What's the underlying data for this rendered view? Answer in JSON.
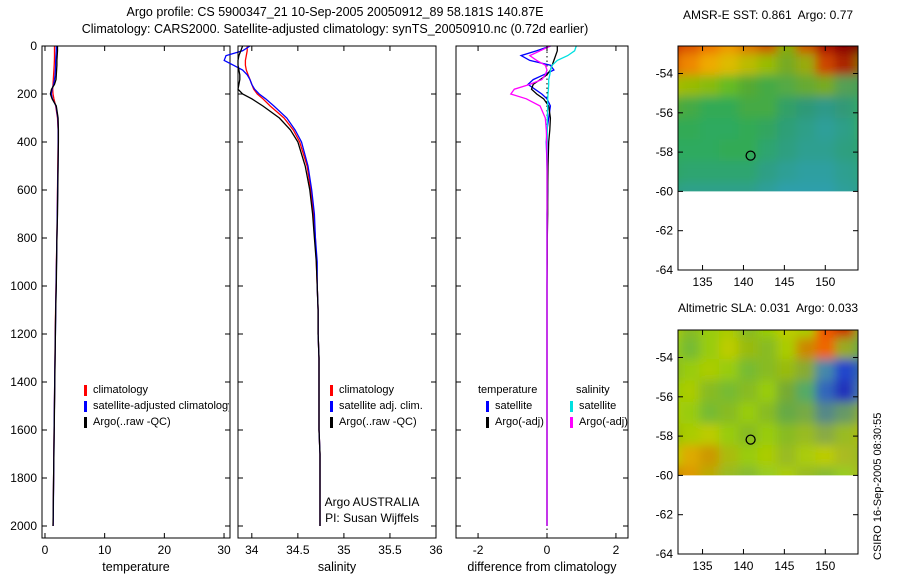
{
  "header": {
    "title_line1": "Argo profile: CS 5900347_21 10-Sep-2005 20050912_89 58.181S 140.87E",
    "title_line2": "Climatology: CARS2000. Satellite-adjusted climatology: synTS_20050910.nc (0.72d earlier)"
  },
  "watermark": "CSIRO 16-Sep-2005 08:30:55",
  "annotations": {
    "line1": "Argo AUSTRALIA",
    "line2": "PI: Susan Wijffels"
  },
  "legends": {
    "temperature": {
      "items": [
        {
          "label": "climatology",
          "color": "#ff0000"
        },
        {
          "label": "satellite-adjusted climatology",
          "color": "#0000ff"
        },
        {
          "label": "Argo(..raw -QC)",
          "color": "#000000"
        }
      ]
    },
    "salinity": {
      "items": [
        {
          "label": "climatology",
          "color": "#ff0000"
        },
        {
          "label": "satellite adj. clim.",
          "color": "#0000ff"
        },
        {
          "label": "Argo(..raw -QC)",
          "color": "#000000"
        }
      ]
    },
    "difference": {
      "columns": [
        {
          "header": "temperature",
          "items": [
            {
              "label": "satellite",
              "color": "#0000ff"
            },
            {
              "label": "Argo(-adj)",
              "color": "#000000"
            }
          ]
        },
        {
          "header": "salinity",
          "items": [
            {
              "label": "satellite",
              "color": "#00e0e0"
            },
            {
              "label": "Argo(-adj)",
              "color": "#ff00ff"
            }
          ]
        }
      ]
    }
  },
  "chart_data": [
    {
      "id": "temperature-profile",
      "type": "line",
      "xlabel": "temperature",
      "xlim": [
        -0.5,
        31
      ],
      "ylim": [
        0,
        2050
      ],
      "xticks": [
        0,
        10,
        20,
        30
      ],
      "yticks": [
        0,
        200,
        400,
        600,
        800,
        1000,
        1200,
        1400,
        1600,
        1800,
        2000
      ],
      "depths": [
        0,
        20,
        40,
        60,
        80,
        100,
        120,
        140,
        160,
        180,
        200,
        220,
        250,
        300,
        350,
        400,
        500,
        600,
        700,
        800,
        900,
        1000,
        1100,
        1200,
        1300,
        1400,
        1500,
        1600,
        1700,
        1800,
        1900,
        1950,
        2000
      ],
      "series": [
        {
          "name": "climatology",
          "color": "#ff0000",
          "x": [
            1.6,
            1.6,
            1.6,
            1.58,
            1.55,
            1.5,
            1.45,
            1.4,
            1.35,
            1.3,
            1.35,
            1.5,
            1.8,
            2.1,
            2.2,
            2.2,
            2.15,
            2.1,
            2.05,
            2.0,
            1.92,
            1.85,
            1.78,
            1.72,
            1.67,
            1.62,
            1.57,
            1.52,
            1.48,
            1.44,
            1.4,
            1.38,
            1.36
          ]
        },
        {
          "name": "satellite-adjusted climatology",
          "color": "#0000ff",
          "x": [
            1.9,
            1.9,
            1.85,
            1.8,
            1.78,
            1.75,
            1.7,
            1.6,
            1.45,
            1.2,
            1.05,
            1.25,
            1.85,
            2.15,
            2.22,
            2.22,
            2.18,
            2.12,
            2.07,
            2.0,
            1.93,
            1.87,
            1.8,
            1.74,
            1.68,
            1.63,
            1.58,
            1.53,
            1.49,
            1.45,
            1.41,
            1.39,
            1.36
          ]
        },
        {
          "name": "Argo(..raw -QC)",
          "color": "#000000",
          "x": [
            2.1,
            2.1,
            2.05,
            2.0,
            2.0,
            1.95,
            1.9,
            1.85,
            1.6,
            1.1,
            0.9,
            1.2,
            1.9,
            2.2,
            2.25,
            2.25,
            2.2,
            2.15,
            2.1,
            2.0,
            1.95,
            1.9,
            1.8,
            1.75,
            1.7,
            1.65,
            1.6,
            1.55,
            1.5,
            1.45,
            1.4,
            1.38,
            1.35
          ]
        }
      ]
    },
    {
      "id": "salinity-profile",
      "type": "line",
      "xlabel": "salinity",
      "xlim": [
        33.85,
        36
      ],
      "ylim": [
        0,
        2050
      ],
      "xticks": [
        34,
        34.5,
        35,
        35.5,
        36
      ],
      "yticks": [
        0,
        200,
        400,
        600,
        800,
        1000,
        1200,
        1400,
        1600,
        1800,
        2000
      ],
      "depths": [
        0,
        20,
        40,
        60,
        80,
        100,
        120,
        140,
        160,
        180,
        200,
        220,
        250,
        300,
        350,
        400,
        500,
        600,
        700,
        800,
        900,
        1000,
        1100,
        1200,
        1300,
        1400,
        1500,
        1600,
        1700,
        1800,
        1900,
        1950,
        2000
      ],
      "series": [
        {
          "name": "climatology",
          "color": "#ff0000",
          "x": [
            33.95,
            33.95,
            33.94,
            33.93,
            33.93,
            33.94,
            33.96,
            33.98,
            34.0,
            34.02,
            34.06,
            34.12,
            34.2,
            34.35,
            34.45,
            34.52,
            34.6,
            34.64,
            34.67,
            34.69,
            34.7,
            34.71,
            34.72,
            34.72,
            34.73,
            34.73,
            34.73,
            34.73,
            34.74,
            34.74,
            34.74,
            34.74,
            34.74
          ]
        },
        {
          "name": "satellite adj. clim.",
          "color": "#0000ff",
          "x": [
            33.98,
            33.9,
            33.72,
            33.7,
            33.8,
            33.9,
            33.95,
            33.98,
            34.0,
            34.03,
            34.08,
            34.15,
            34.24,
            34.38,
            34.47,
            34.54,
            34.61,
            34.65,
            34.68,
            34.69,
            34.71,
            34.71,
            34.72,
            34.72,
            34.73,
            34.73,
            34.73,
            34.73,
            34.74,
            34.74,
            34.74,
            34.74,
            34.74
          ]
        },
        {
          "name": "Argo(..raw -QC)",
          "color": "#000000",
          "x": [
            33.9,
            33.88,
            33.86,
            33.85,
            33.85,
            33.86,
            33.87,
            33.87,
            33.86,
            33.85,
            33.9,
            34.0,
            34.12,
            34.3,
            34.42,
            34.5,
            34.58,
            34.63,
            34.66,
            34.68,
            34.7,
            34.71,
            34.72,
            34.72,
            34.73,
            34.73,
            34.73,
            34.73,
            34.74,
            34.74,
            34.74,
            34.74,
            34.74
          ]
        }
      ]
    },
    {
      "id": "difference-profile",
      "type": "line",
      "xlabel": "difference from climatology",
      "xlim": [
        -2.64,
        2.35
      ],
      "ylim": [
        0,
        2050
      ],
      "xticks": [
        -2,
        0,
        2
      ],
      "yticks": [
        0,
        200,
        400,
        600,
        800,
        1000,
        1200,
        1400,
        1600,
        1800,
        2000
      ],
      "zero_line": true,
      "depths": [
        0,
        20,
        40,
        60,
        80,
        100,
        120,
        140,
        160,
        180,
        200,
        220,
        250,
        300,
        350,
        400,
        500,
        600,
        700,
        800,
        900,
        1000,
        1100,
        1200,
        1300,
        1400,
        1500,
        1600,
        1700,
        1800,
        1900,
        1950,
        2000
      ],
      "series": [
        {
          "name": "temperature satellite",
          "color": "#0000ff",
          "x": [
            0.1,
            -0.3,
            -0.75,
            -0.5,
            0.1,
            0.2,
            -0.1,
            -0.4,
            -0.55,
            -0.35,
            -0.15,
            0.0,
            0.1,
            0.05,
            0.0,
            -0.02,
            0.0,
            0.02,
            0.0,
            0.0,
            0.0,
            0.0,
            0.0,
            0.0,
            0.0,
            0.0,
            0.0,
            0.0,
            0.0,
            0.0,
            0.0,
            0.0,
            0.0
          ]
        },
        {
          "name": "temperature Argo(-adj)",
          "color": "#000000",
          "x": [
            0.3,
            0.3,
            0.25,
            0.2,
            0.15,
            0.1,
            0.0,
            -0.2,
            -0.4,
            -0.45,
            -0.3,
            -0.1,
            0.05,
            0.1,
            0.08,
            0.05,
            0.03,
            0.02,
            0.02,
            0.01,
            0.01,
            0.0,
            0.0,
            0.0,
            0.0,
            0.0,
            0.0,
            0.0,
            0.0,
            0.0,
            0.0,
            0.0,
            0.0
          ]
        },
        {
          "name": "salinity satellite",
          "color": "#00e0e0",
          "x": [
            0.85,
            0.8,
            0.6,
            0.3,
            0.15,
            0.1,
            0.08,
            0.05,
            0.05,
            0.04,
            0.03,
            0.02,
            0.02,
            0.01,
            0.01,
            0.01,
            0.0,
            0.0,
            0.0,
            0.0,
            0.0,
            0.0,
            0.0,
            0.0,
            0.0,
            0.0,
            0.0,
            0.0,
            0.0,
            0.0,
            0.0,
            0.0,
            0.0
          ]
        },
        {
          "name": "salinity Argo(-adj)",
          "color": "#ff00ff",
          "x": [
            0.1,
            -0.2,
            -0.5,
            -0.3,
            -0.05,
            0.0,
            -0.05,
            -0.15,
            -0.5,
            -0.95,
            -1.05,
            -0.6,
            -0.2,
            -0.05,
            -0.02,
            -0.01,
            0.0,
            0.0,
            0.0,
            0.0,
            0.0,
            0.0,
            0.0,
            0.0,
            0.0,
            0.0,
            0.0,
            0.0,
            0.0,
            0.0,
            0.0,
            0.0,
            0.0
          ]
        }
      ]
    },
    {
      "id": "sst-map",
      "type": "heatmap",
      "title": "AMSR-E SST: 0.861  Argo: 0.77",
      "xlim": [
        132,
        154
      ],
      "ylim": [
        -52.6,
        -64
      ],
      "xticks": [
        135,
        140,
        145,
        150
      ],
      "yticks": [
        -54,
        -56,
        -58,
        -60,
        -62,
        -64
      ],
      "data_lat_limit": -60,
      "marker": {
        "lon": 140.87,
        "lat": -58.18
      },
      "grid": [
        [
          "#cc3300",
          "#dd5500",
          "#ee7700",
          "#ee9900",
          "#dd7700",
          "#cc5500",
          "#88aa00",
          "#cc5500",
          "#aa1100",
          "#880000",
          "#770000"
        ],
        [
          "#dd6600",
          "#ee8800",
          "#eeaa00",
          "#ddbb00",
          "#bbbb00",
          "#99bb00",
          "#77aa22",
          "#99aa11",
          "#cc4400",
          "#aa2200",
          "#886600"
        ],
        [
          "#aabb00",
          "#99bb00",
          "#88bb11",
          "#66bb22",
          "#55aa33",
          "#44aa44",
          "#55aa44",
          "#66aa33",
          "#77aa22",
          "#55a055",
          "#44a055"
        ],
        [
          "#55aa33",
          "#44aa44",
          "#33aa55",
          "#33aa55",
          "#44aa44",
          "#44aa44",
          "#33a066",
          "#2f9977",
          "#2f9988",
          "#339977",
          "#33aa66"
        ],
        [
          "#33aa55",
          "#33aa55",
          "#2faa5f",
          "#2faa5f",
          "#33aa55",
          "#33a55f",
          "#2f9f77",
          "#2f9f88",
          "#2f9f99",
          "#2f9f88",
          "#33aa66"
        ],
        [
          "#2faa5f",
          "#2faa5f",
          "#2faa5f",
          "#33aa55",
          "#33aa55",
          "#2fa56f",
          "#2f9f80",
          "#2f9f90",
          "#2f9f90",
          "#2f9f80",
          "#2fa570"
        ],
        [
          "#2fa566",
          "#2fa570",
          "#2fa570",
          "#2fa570",
          "#2fa570",
          "#2f9f85",
          "#2f9f95",
          "#2f9fa0",
          "#2f9fa0",
          "#2f9f90",
          "#2fa580"
        ],
        [
          "#2fa080",
          "#2fa08a",
          "#2fa08a",
          "#2fa08a",
          "#2fa08a",
          "#2f9f9a",
          "#2f9faa",
          "#2f9faa",
          "#2f9faa",
          "#2f9f9a",
          "#2fa08a"
        ]
      ]
    },
    {
      "id": "sla-map",
      "type": "heatmap",
      "title": "Altimetric SLA: 0.031  Argo: 0.033",
      "xlim": [
        132,
        154
      ],
      "ylim": [
        -52.6,
        -64
      ],
      "xticks": [
        135,
        140,
        145,
        150
      ],
      "yticks": [
        -54,
        -56,
        -58,
        -60,
        -62,
        -64
      ],
      "data_lat_limit": -60,
      "marker": {
        "lon": 140.87,
        "lat": -58.18
      },
      "grid": [
        [
          "#aacc00",
          "#88bb22",
          "#99cc11",
          "#aacc00",
          "#88bb22",
          "#99cc00",
          "#bbcc00",
          "#aacc00",
          "#ee5500",
          "#cc3300",
          "#88aa22"
        ],
        [
          "#99cc11",
          "#77bb33",
          "#99cc11",
          "#bbcc00",
          "#99bb11",
          "#88bb22",
          "#aacc00",
          "#cc8800",
          "#ee6600",
          "#99aa22",
          "#66aa44"
        ],
        [
          "#88bb22",
          "#99cc11",
          "#aacc00",
          "#99cc11",
          "#77bb33",
          "#88bb22",
          "#99bb11",
          "#88aa33",
          "#4488aa",
          "#2244cc",
          "#3366aa"
        ],
        [
          "#99cc11",
          "#aacc00",
          "#88bb22",
          "#77bb33",
          "#88bb22",
          "#99cc11",
          "#77aa33",
          "#55aa66",
          "#3366bb",
          "#2233bb",
          "#4477aa"
        ],
        [
          "#aacc00",
          "#99cc11",
          "#77bb33",
          "#88bb22",
          "#99cc11",
          "#88bb22",
          "#66aa44",
          "#77aa44",
          "#558888",
          "#669966",
          "#88aa33"
        ],
        [
          "#99bb11",
          "#aacc00",
          "#bbcc00",
          "#99cc11",
          "#88bb22",
          "#99cc11",
          "#88bb22",
          "#99bb22",
          "#88aa44",
          "#99bb22",
          "#aabb11"
        ],
        [
          "#bbcc00",
          "#ddaa00",
          "#cc9900",
          "#aabb11",
          "#99cc11",
          "#aacc00",
          "#99bb22",
          "#aacc11",
          "#bbcc00",
          "#aabb22",
          "#99bb22"
        ],
        [
          "#cc8800",
          "#dd9900",
          "#bbaa00",
          "#99bb22",
          "#88bb33",
          "#99cc22",
          "#aacc11",
          "#99bb22",
          "#88bb33",
          "#99cc22",
          "#aabb22"
        ]
      ]
    }
  ]
}
